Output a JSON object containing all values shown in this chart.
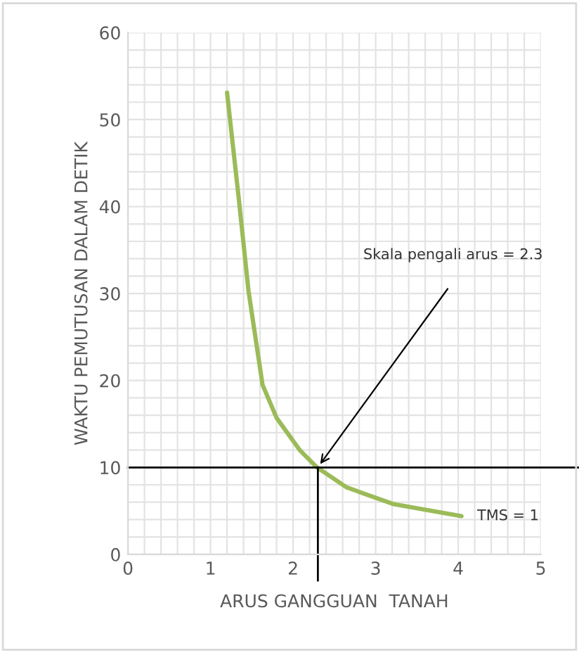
{
  "chart_data": {
    "type": "line",
    "xlabel": "ARUS GANGGUAN  TANAH",
    "ylabel": "WAKTU PEMUTUSAN DALAM DETIK",
    "xlim": [
      0,
      5
    ],
    "xticks": [
      0,
      1,
      2,
      3,
      4,
      5
    ],
    "ylim": [
      0,
      60
    ],
    "yticks": [
      0,
      10,
      20,
      30,
      40,
      50,
      60
    ],
    "grid": true,
    "marker": "none",
    "line_style": "solid",
    "series": [
      {
        "color": "#9bbb59",
        "x": [
          1.2,
          1.34,
          1.46,
          1.63,
          1.8,
          2.08,
          2.29,
          2.65,
          3.21,
          4.04
        ],
        "values": [
          53.1,
          41.1,
          30.3,
          19.5,
          15.7,
          12.0,
          10.0,
          7.7,
          5.8,
          4.4
        ]
      }
    ],
    "ref_lines": [
      {
        "axis": "y",
        "value": 10,
        "color": "#000000"
      },
      {
        "axis": "x",
        "value": 2.3,
        "color": "#000000"
      }
    ],
    "annotations": [
      "Skala pengali arus = 2.3",
      {
        "text": "TMS = 1",
        "x": 4.04,
        "y": 4.4
      }
    ]
  }
}
